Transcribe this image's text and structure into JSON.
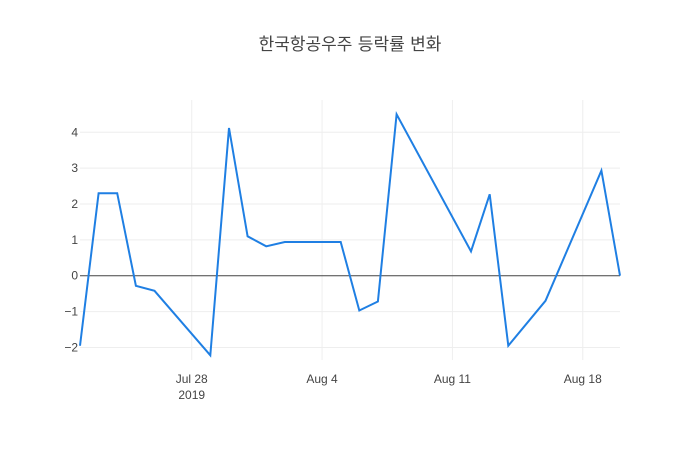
{
  "chart_data": {
    "type": "line",
    "title": "한국항공우주 등락률 변화",
    "xlabel": "",
    "ylabel": "",
    "ylim": [
      -2.35,
      4.9
    ],
    "xlim": [
      "2019-07-22",
      "2019-08-20"
    ],
    "yticks": [
      -2,
      -1,
      0,
      1,
      2,
      3,
      4
    ],
    "ytick_labels": [
      "−2",
      "−1",
      "0",
      "1",
      "2",
      "3",
      "4"
    ],
    "xticks": [
      "2019-07-28",
      "2019-08-04",
      "2019-08-11",
      "2019-08-18"
    ],
    "xtick_labels": [
      "Jul 28",
      "Aug 4",
      "Aug 11",
      "Aug 18"
    ],
    "xtick_sublabel": "2019",
    "grid": true,
    "zero_line": true,
    "colors": {
      "line": "#1f7fe3",
      "grid": "#eeeeee",
      "zero_line": "#444444"
    },
    "series": [
      {
        "x": [
          "2019-07-22",
          "2019-07-23",
          "2019-07-24",
          "2019-07-25",
          "2019-07-26",
          "2019-07-29",
          "2019-07-30",
          "2019-07-31",
          "2019-08-01",
          "2019-08-02",
          "2019-08-05",
          "2019-08-06",
          "2019-08-07",
          "2019-08-08",
          "2019-08-12",
          "2019-08-13",
          "2019-08-14",
          "2019-08-16",
          "2019-08-19",
          "2019-08-20"
        ],
        "values": [
          -1.95,
          2.3,
          2.3,
          -0.28,
          -0.42,
          -2.22,
          4.12,
          1.1,
          0.82,
          0.94,
          0.94,
          -0.97,
          -0.72,
          4.5,
          0.68,
          2.27,
          -1.95,
          -0.7,
          2.93,
          0.0
        ]
      }
    ]
  }
}
